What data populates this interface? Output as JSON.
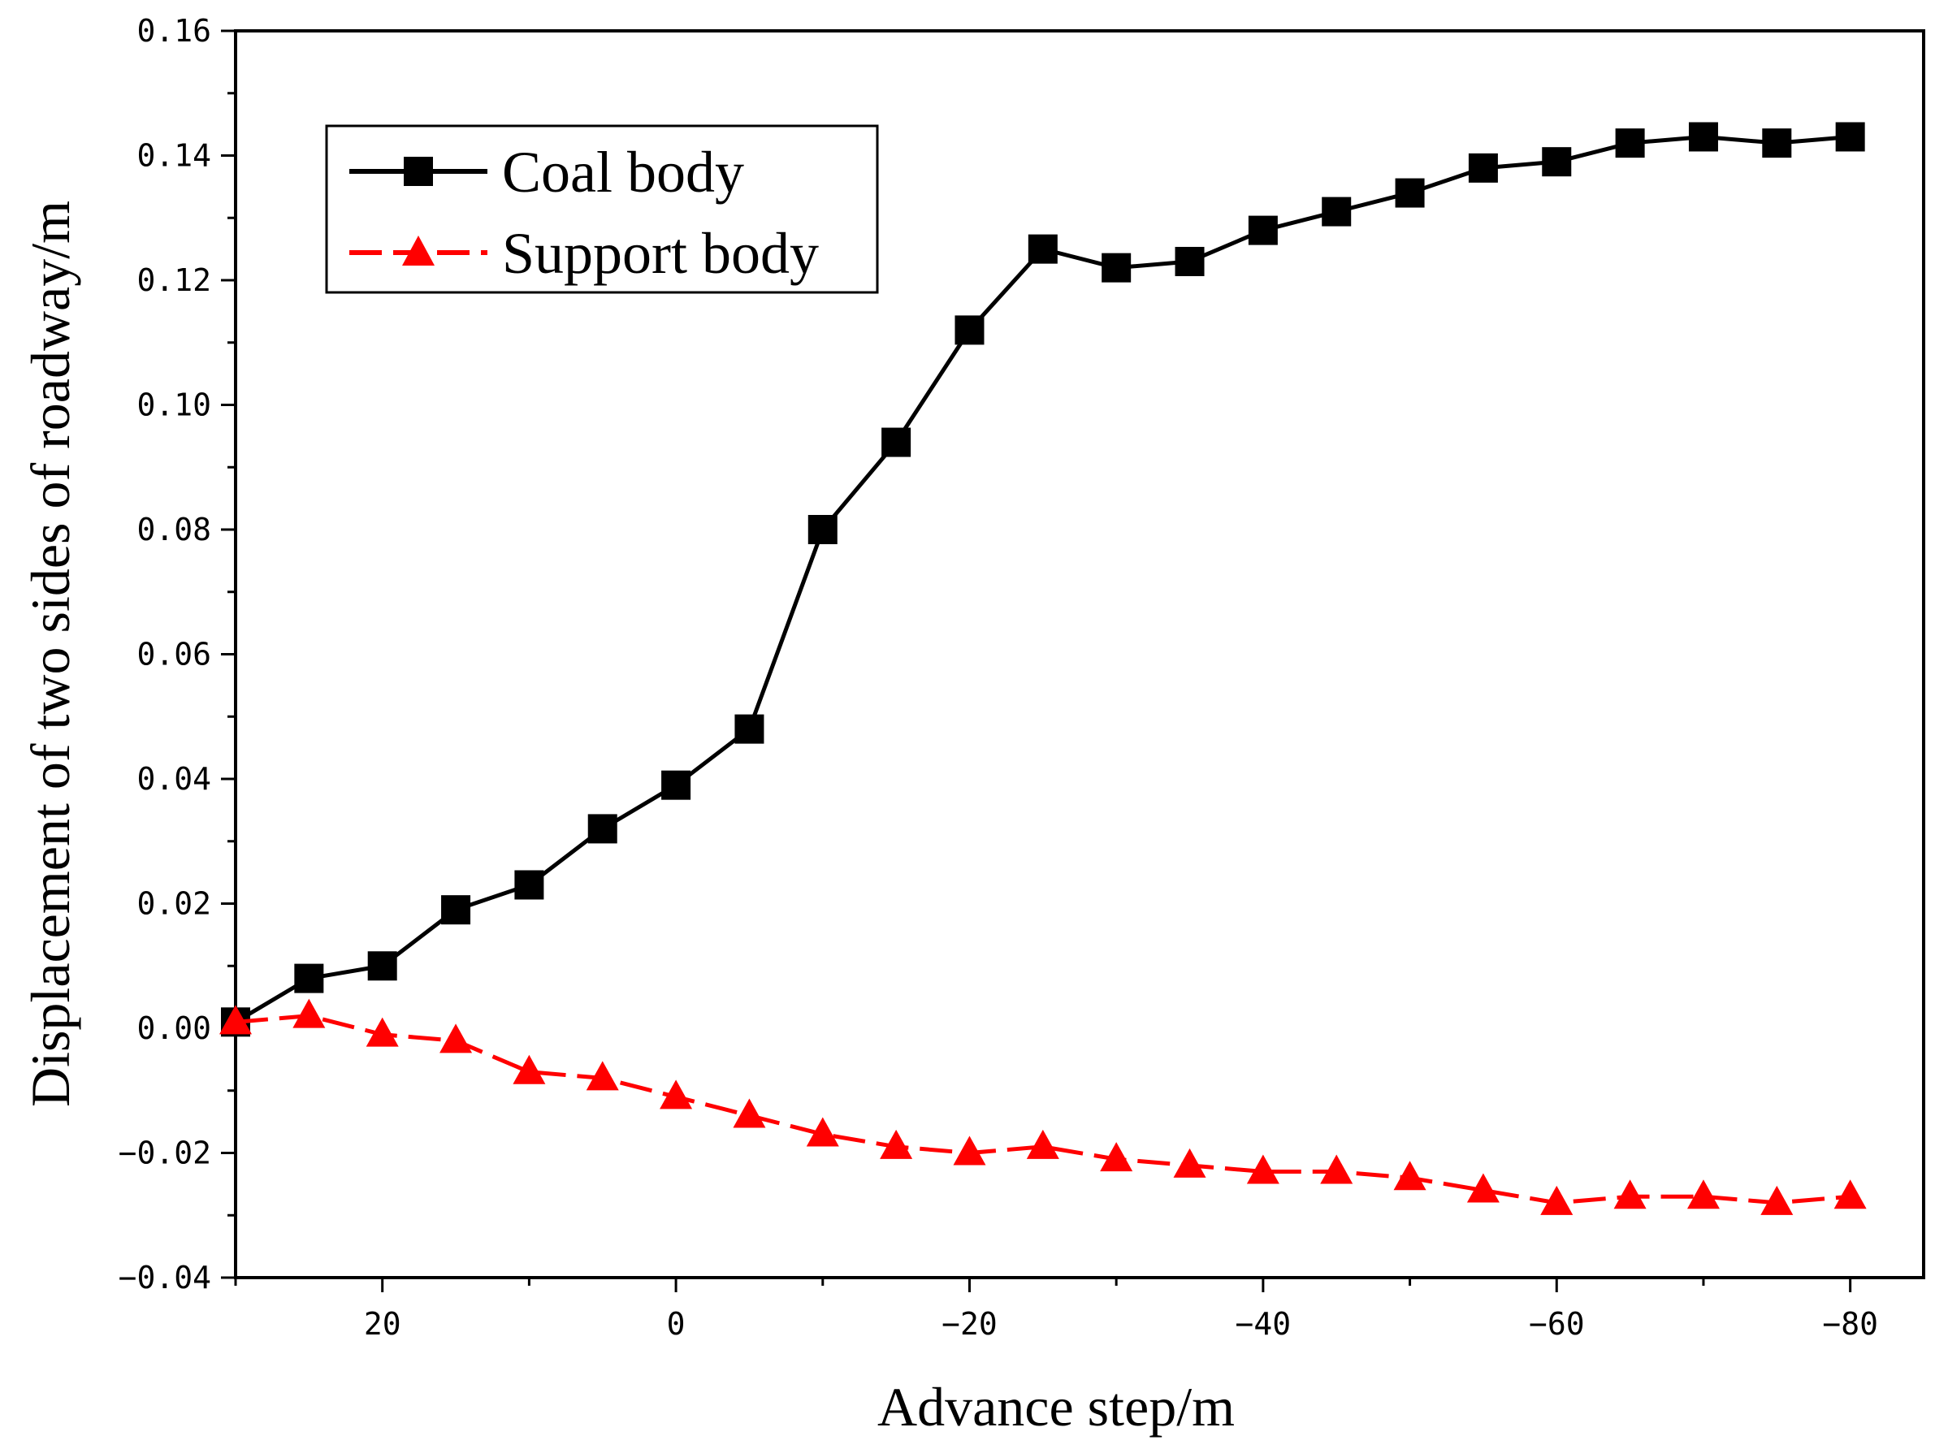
{
  "chart_data": {
    "type": "line",
    "title": "",
    "xlabel": "Advance step/m",
    "ylabel": "Displacement of two sides of roadway/m",
    "xlim": [
      30,
      -85
    ],
    "ylim": [
      -0.04,
      0.16
    ],
    "x_ticks": [
      20,
      0,
      -20,
      -40,
      -60,
      -80
    ],
    "x_tick_labels": [
      "20",
      "0",
      "−20",
      "−40",
      "−60",
      "−80"
    ],
    "y_ticks": [
      -0.04,
      -0.02,
      0.0,
      0.02,
      0.04,
      0.06,
      0.08,
      0.1,
      0.12,
      0.14,
      0.16
    ],
    "y_tick_labels": [
      "−0.04",
      "−0.02",
      "0.00",
      "0.02",
      "0.04",
      "0.06",
      "0.08",
      "0.10",
      "0.12",
      "0.14",
      "0.16"
    ],
    "x": [
      30,
      25,
      20,
      15,
      10,
      5,
      0,
      -5,
      -10,
      -15,
      -20,
      -25,
      -30,
      -35,
      -40,
      -45,
      -50,
      -55,
      -60,
      -65,
      -70,
      -75,
      -80
    ],
    "series": [
      {
        "name": "Coal body",
        "color": "#000000",
        "marker": "square",
        "values": [
          0.001,
          0.008,
          0.01,
          0.019,
          0.023,
          0.032,
          0.039,
          0.048,
          0.08,
          0.094,
          0.112,
          0.125,
          0.122,
          0.123,
          0.128,
          0.131,
          0.134,
          0.138,
          0.139,
          0.142,
          0.143,
          0.142,
          0.143
        ]
      },
      {
        "name": "Support body",
        "color": "#ff0000",
        "marker": "triangle",
        "values": [
          0.001,
          0.002,
          -0.001,
          -0.002,
          -0.007,
          -0.008,
          -0.011,
          -0.014,
          -0.017,
          -0.019,
          -0.02,
          -0.019,
          -0.021,
          -0.022,
          -0.023,
          -0.023,
          -0.024,
          -0.026,
          -0.028,
          -0.027,
          -0.027,
          -0.028,
          -0.027
        ]
      }
    ],
    "legend": {
      "position": "top-left",
      "entries": [
        "Coal body",
        "Support body"
      ]
    }
  }
}
